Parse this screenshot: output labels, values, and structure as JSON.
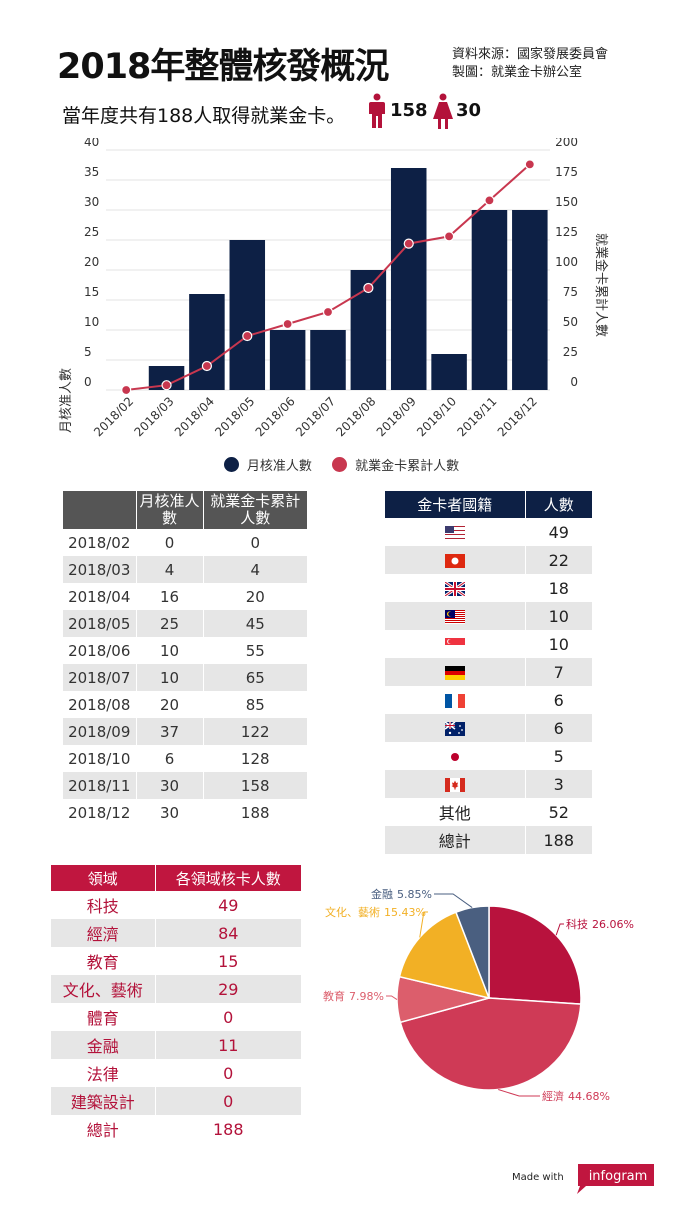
{
  "header": {
    "title": "2018年整體核發概況",
    "source_line": "資料來源：國家發展委員會",
    "producer_line": "製圖：就業金卡辦公室",
    "summary": "當年度共有188人取得就業金卡。",
    "male_count": "158",
    "female_count": "30",
    "male_color": "#b3123a",
    "female_color": "#b3123a"
  },
  "chart_data": [
    {
      "type": "bar+line",
      "categories": [
        "2018/02",
        "2018/03",
        "2018/04",
        "2018/05",
        "2018/06",
        "2018/07",
        "2018/08",
        "2018/09",
        "2018/10",
        "2018/11",
        "2018/12"
      ],
      "series": [
        {
          "name": "月核准人數",
          "type": "bar",
          "axis": "left",
          "color": "#0d2045",
          "values": [
            0,
            4,
            16,
            25,
            10,
            10,
            20,
            37,
            6,
            30,
            30
          ]
        },
        {
          "name": "就業金卡累計人數",
          "type": "line",
          "axis": "right",
          "color": "#c8374f",
          "values": [
            0,
            4,
            20,
            45,
            55,
            65,
            85,
            122,
            128,
            158,
            188
          ]
        }
      ],
      "ylabel": "月核准人數",
      "y2label": "就業金卡累計人數",
      "ylim": [
        0,
        40
      ],
      "y2lim": [
        0,
        200
      ],
      "yticks": [
        0,
        5,
        10,
        15,
        20,
        25,
        30,
        35,
        40
      ],
      "y2ticks": [
        0,
        25,
        50,
        75,
        100,
        125,
        150,
        175,
        200
      ],
      "grid": true,
      "legend": "bottom"
    },
    {
      "type": "pie",
      "slices": [
        {
          "label": "科技",
          "pct": "26.06%",
          "value": 26.06,
          "color": "#b8123d"
        },
        {
          "label": "經濟",
          "pct": "44.68%",
          "value": 44.68,
          "color": "#cf3a56"
        },
        {
          "label": "教育",
          "pct": "7.98%",
          "value": 7.98,
          "color": "#dc5e6c"
        },
        {
          "label": "文化、藝術",
          "pct": "15.43%",
          "value": 15.43,
          "color": "#f2b025"
        },
        {
          "label": "金融",
          "pct": "5.85%",
          "value": 5.85,
          "color": "#4a5f80"
        }
      ]
    }
  ],
  "monthly_table": {
    "headers": [
      "",
      "月核准人數",
      "就業金卡累計人數"
    ],
    "rows": [
      [
        "2018/02",
        "0",
        "0"
      ],
      [
        "2018/03",
        "4",
        "4"
      ],
      [
        "2018/04",
        "16",
        "20"
      ],
      [
        "2018/05",
        "25",
        "45"
      ],
      [
        "2018/06",
        "10",
        "55"
      ],
      [
        "2018/07",
        "10",
        "65"
      ],
      [
        "2018/08",
        "20",
        "85"
      ],
      [
        "2018/09",
        "37",
        "122"
      ],
      [
        "2018/10",
        "6",
        "128"
      ],
      [
        "2018/11",
        "30",
        "158"
      ],
      [
        "2018/12",
        "30",
        "188"
      ]
    ]
  },
  "nation_table": {
    "headers": [
      "金卡者國籍",
      "人數"
    ],
    "rows": [
      {
        "flag": "us-flag",
        "count": "49"
      },
      {
        "flag": "hk-flag",
        "count": "22"
      },
      {
        "flag": "uk-flag",
        "count": "18"
      },
      {
        "flag": "my-flag",
        "count": "10"
      },
      {
        "flag": "sg-flag",
        "count": "10"
      },
      {
        "flag": "de-flag",
        "count": "7"
      },
      {
        "flag": "fr-flag",
        "count": "6"
      },
      {
        "flag": "au-flag",
        "count": "6"
      },
      {
        "flag": "jp-flag",
        "count": "5"
      },
      {
        "flag": "ca-flag",
        "count": "3"
      }
    ],
    "other_label": "其他",
    "other_count": "52",
    "total_label": "總計",
    "total_count": "188"
  },
  "domain_table": {
    "headers": [
      "領域",
      "各領域核卡人數"
    ],
    "rows": [
      [
        "科技",
        "49"
      ],
      [
        "經濟",
        "84"
      ],
      [
        "教育",
        "15"
      ],
      [
        "文化、藝術",
        "29"
      ],
      [
        "體育",
        "0"
      ],
      [
        "金融",
        "11"
      ],
      [
        "法律",
        "0"
      ],
      [
        "建築設計",
        "0"
      ],
      [
        "總計",
        "188"
      ]
    ]
  },
  "footer": {
    "made_with": "Made with",
    "brand": "infogram",
    "brand_color": "#c0163f"
  }
}
